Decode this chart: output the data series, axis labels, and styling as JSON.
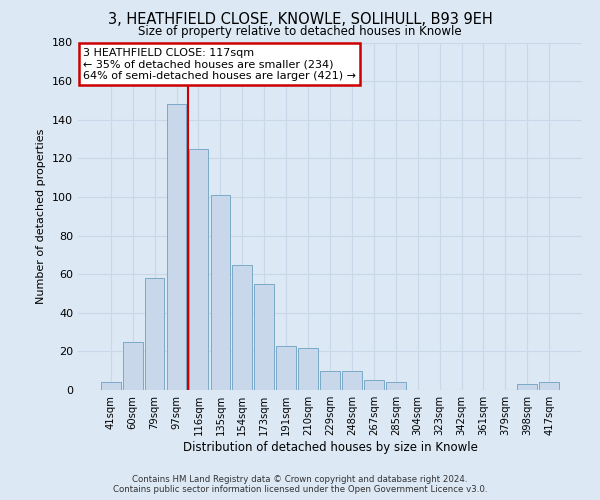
{
  "title": "3, HEATHFIELD CLOSE, KNOWLE, SOLIHULL, B93 9EH",
  "subtitle": "Size of property relative to detached houses in Knowle",
  "xlabel": "Distribution of detached houses by size in Knowle",
  "ylabel": "Number of detached properties",
  "bar_labels": [
    "41sqm",
    "60sqm",
    "79sqm",
    "97sqm",
    "116sqm",
    "135sqm",
    "154sqm",
    "173sqm",
    "191sqm",
    "210sqm",
    "229sqm",
    "248sqm",
    "267sqm",
    "285sqm",
    "304sqm",
    "323sqm",
    "342sqm",
    "361sqm",
    "379sqm",
    "398sqm",
    "417sqm"
  ],
  "bar_values": [
    4,
    25,
    58,
    148,
    125,
    101,
    65,
    55,
    23,
    22,
    10,
    10,
    5,
    4,
    0,
    0,
    0,
    0,
    0,
    3,
    4
  ],
  "bar_color": "#c8d8ea",
  "bar_edge_color": "#7aaac8",
  "ylim": [
    0,
    180
  ],
  "yticks": [
    0,
    20,
    40,
    60,
    80,
    100,
    120,
    140,
    160,
    180
  ],
  "vline_color": "#cc0000",
  "vline_position": 3.52,
  "annotation_title": "3 HEATHFIELD CLOSE: 117sqm",
  "annotation_line1": "← 35% of detached houses are smaller (234)",
  "annotation_line2": "64% of semi-detached houses are larger (421) →",
  "annotation_box_color": "#ffffff",
  "annotation_box_edge_color": "#cc0000",
  "grid_color": "#c8d8e8",
  "bg_color": "#dce8f4",
  "footer_line1": "Contains HM Land Registry data © Crown copyright and database right 2024.",
  "footer_line2": "Contains public sector information licensed under the Open Government Licence v3.0."
}
